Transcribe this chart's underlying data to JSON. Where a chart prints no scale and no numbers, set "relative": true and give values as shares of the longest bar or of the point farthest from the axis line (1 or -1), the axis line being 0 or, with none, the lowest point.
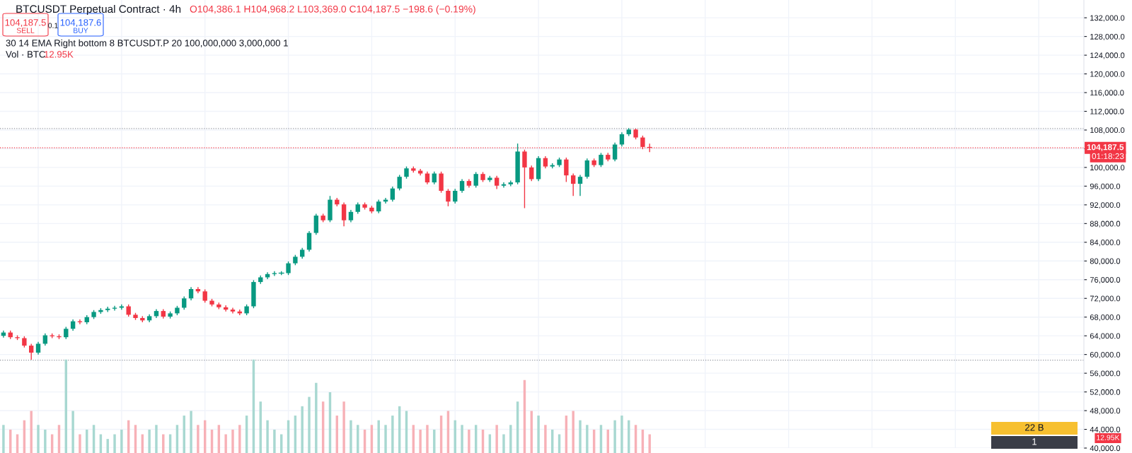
{
  "chart_data": [
    {
      "type": "candlestick",
      "title": "BTCUSDT Perpetual Contract · 4h",
      "categories": [
        null,
        null,
        null,
        null,
        null,
        null,
        null,
        null,
        null,
        null,
        null,
        null,
        null,
        null,
        null,
        null,
        null,
        null,
        null,
        null,
        null,
        null,
        null,
        null,
        null,
        null,
        null,
        null,
        null,
        null,
        null,
        null,
        null,
        null,
        null,
        null,
        null,
        null,
        null,
        null,
        null,
        null,
        null,
        null,
        null,
        null,
        null,
        null,
        null,
        null,
        null,
        null,
        null,
        null,
        null,
        null,
        null,
        null,
        null,
        null,
        null,
        null,
        null,
        null,
        null,
        null,
        null,
        null,
        null,
        null,
        null,
        null,
        null,
        null,
        null,
        null,
        null,
        null,
        null,
        null,
        null,
        null,
        null,
        null,
        null,
        null,
        null,
        null,
        null,
        null,
        null,
        null,
        null,
        null,
        null,
        null,
        null,
        null,
        null,
        null,
        null,
        null,
        null,
        null,
        null,
        null,
        null,
        null,
        null,
        null,
        null,
        null,
        null,
        null,
        null,
        null,
        null,
        null,
        null,
        null,
        null,
        null,
        null,
        null,
        null,
        null,
        null,
        null,
        null,
        null,
        null,
        null,
        null,
        null,
        null,
        null,
        null,
        null,
        null,
        null,
        null,
        null,
        null,
        null,
        null,
        null,
        null,
        null,
        null,
        null,
        null,
        null,
        null,
        null,
        null,
        null
      ],
      "ohlc": [
        [
          64000,
          65000,
          63700,
          64700
        ],
        [
          64700,
          65000,
          63400,
          63700
        ],
        [
          63700,
          64000,
          63200,
          63500
        ],
        [
          63500,
          63800,
          61600,
          61900
        ],
        [
          61900,
          62200,
          59000,
          60400
        ],
        [
          60400,
          62600,
          60100,
          62300
        ],
        [
          62300,
          64400,
          62000,
          64100
        ],
        [
          64100,
          64400,
          63600,
          63900
        ],
        [
          63900,
          64200,
          63400,
          63700
        ],
        [
          63700,
          65800,
          63400,
          65500
        ],
        [
          65500,
          67400,
          65200,
          67100
        ],
        [
          67100,
          67400,
          66600,
          66900
        ],
        [
          66900,
          68300,
          66600,
          68000
        ],
        [
          68000,
          69400,
          67700,
          69100
        ],
        [
          69100,
          69800,
          68800,
          69500
        ],
        [
          69500,
          70100,
          69200,
          69800
        ],
        [
          69800,
          70300,
          69500,
          70000
        ],
        [
          70000,
          70600,
          69700,
          70300
        ],
        [
          70300,
          70600,
          68200,
          68500
        ],
        [
          68500,
          68800,
          67500,
          67800
        ],
        [
          67800,
          68100,
          67000,
          67300
        ],
        [
          67300,
          68500,
          67000,
          68200
        ],
        [
          68200,
          69600,
          67900,
          69300
        ],
        [
          69300,
          69600,
          67800,
          68100
        ],
        [
          68100,
          69100,
          67800,
          68800
        ],
        [
          68800,
          70300,
          68500,
          70000
        ],
        [
          70000,
          72300,
          69700,
          72000
        ],
        [
          72000,
          74300,
          71700,
          74000
        ],
        [
          74000,
          74300,
          73200,
          73500
        ],
        [
          73500,
          73800,
          71200,
          71500
        ],
        [
          71500,
          71800,
          70400,
          70700
        ],
        [
          70700,
          71000,
          69800,
          70100
        ],
        [
          70100,
          70400,
          69300,
          69600
        ],
        [
          69600,
          69900,
          68900,
          69200
        ],
        [
          69200,
          69500,
          68500,
          68800
        ],
        [
          68800,
          70600,
          68500,
          70300
        ],
        [
          70300,
          75800,
          70000,
          75500
        ],
        [
          75500,
          76800,
          75200,
          76500
        ],
        [
          76500,
          77500,
          76200,
          77200
        ],
        [
          77200,
          77700,
          76900,
          77400
        ],
        [
          77400,
          77700,
          77100,
          77400
        ],
        [
          77400,
          79800,
          77100,
          79500
        ],
        [
          79500,
          81200,
          79200,
          80900
        ],
        [
          80900,
          82700,
          80600,
          82400
        ],
        [
          82400,
          86300,
          82100,
          86000
        ],
        [
          86000,
          90000,
          85700,
          89700
        ],
        [
          89700,
          90000,
          88400,
          88700
        ],
        [
          88700,
          93800,
          88400,
          93100
        ],
        [
          93100,
          93400,
          91800,
          92100
        ],
        [
          92100,
          92400,
          87500,
          88700
        ],
        [
          88700,
          90800,
          88400,
          90500
        ],
        [
          90500,
          92400,
          90200,
          92100
        ],
        [
          92100,
          92400,
          91100,
          91400
        ],
        [
          91400,
          91700,
          90300,
          90600
        ],
        [
          90600,
          93000,
          90300,
          92700
        ],
        [
          92700,
          93400,
          92400,
          93100
        ],
        [
          93100,
          95800,
          92800,
          95500
        ],
        [
          95500,
          98300,
          95200,
          98000
        ],
        [
          98000,
          100100,
          97700,
          99800
        ],
        [
          99800,
          100100,
          99000,
          99300
        ],
        [
          99300,
          99600,
          98400,
          98700
        ],
        [
          98700,
          99000,
          96500,
          96800
        ],
        [
          96800,
          99000,
          96500,
          98700
        ],
        [
          98700,
          99000,
          94700,
          95000
        ],
        [
          95000,
          95300,
          91800,
          92700
        ],
        [
          92700,
          95300,
          92400,
          95000
        ],
        [
          95000,
          97400,
          94700,
          97100
        ],
        [
          97100,
          97400,
          95800,
          96100
        ],
        [
          96100,
          98900,
          95800,
          98600
        ],
        [
          98600,
          98900,
          97000,
          97300
        ],
        [
          97300,
          98100,
          97000,
          97800
        ],
        [
          97800,
          98100,
          95500,
          96100
        ],
        [
          96100,
          96700,
          95800,
          96400
        ],
        [
          96400,
          97100,
          96100,
          96800
        ],
        [
          96800,
          105000,
          96500,
          103400
        ],
        [
          103400,
          103700,
          91400,
          100000
        ],
        [
          100000,
          100300,
          97200,
          97500
        ],
        [
          97500,
          102300,
          97200,
          102000
        ],
        [
          102000,
          102300,
          99900,
          100200
        ],
        [
          100200,
          100800,
          99900,
          100500
        ],
        [
          100500,
          102000,
          100200,
          101700
        ],
        [
          101700,
          102000,
          97000,
          98300
        ],
        [
          98300,
          98600,
          94000,
          96500
        ],
        [
          96500,
          98300,
          94000,
          98000
        ],
        [
          98000,
          101800,
          97700,
          101500
        ],
        [
          101500,
          101800,
          100200,
          100500
        ],
        [
          100500,
          103000,
          100200,
          102700
        ],
        [
          102700,
          103000,
          101400,
          101700
        ],
        [
          101700,
          105200,
          101400,
          104900
        ],
        [
          104900,
          107400,
          104600,
          107100
        ],
        [
          107100,
          108300,
          106800,
          108100
        ],
        [
          108100,
          108200,
          106100,
          106400
        ],
        [
          106400,
          106700,
          104000,
          104386.1
        ],
        [
          104386.1,
          104968.2,
          103369.0,
          104187.5
        ],
        null,
        null,
        null,
        null,
        null,
        null,
        null,
        null,
        null,
        null,
        null,
        null,
        null,
        null,
        null,
        null,
        null,
        null,
        null,
        null,
        null,
        null,
        null,
        null,
        null,
        null,
        null,
        null,
        null,
        null,
        null,
        null,
        null,
        null,
        null,
        null,
        null,
        null,
        null,
        null,
        null,
        null,
        null,
        null,
        null,
        null,
        null,
        null,
        null,
        null,
        null,
        null,
        null,
        null,
        null,
        null,
        null,
        null,
        null,
        null,
        null,
        null
      ],
      "colors": [
        "#089981",
        "#f23645",
        "#f23645",
        "#f23645",
        "#f23645",
        "#089981",
        "#089981",
        "#f23645",
        "#f23645",
        "#089981",
        "#089981",
        "#f23645",
        "#089981",
        "#089981",
        "#089981",
        "#089981",
        "#089981",
        "#089981",
        "#f23645",
        "#f23645",
        "#f23645",
        "#089981",
        "#089981",
        "#f23645",
        "#089981",
        "#089981",
        "#089981",
        "#089981",
        "#f23645",
        "#f23645",
        "#f23645",
        "#f23645",
        "#f23645",
        "#f23645",
        "#f23645",
        "#089981",
        "#089981",
        "#089981",
        "#089981",
        "#089981",
        "#089981",
        "#089981",
        "#089981",
        "#089981",
        "#089981",
        "#089981",
        "#f23645",
        "#089981",
        "#f23645",
        "#f23645",
        "#089981",
        "#089981",
        "#f23645",
        "#f23645",
        "#089981",
        "#089981",
        "#089981",
        "#089981",
        "#089981",
        "#f23645",
        "#f23645",
        "#f23645",
        "#089981",
        "#f23645",
        "#f23645",
        "#089981",
        "#089981",
        "#f23645",
        "#089981",
        "#f23645",
        "#089981",
        "#f23645",
        "#089981",
        "#089981",
        "#089981",
        "#f23645",
        "#f23645",
        "#089981",
        "#f23645",
        "#089981",
        "#089981",
        "#f23645",
        "#f23645",
        "#089981",
        "#089981",
        "#f23645",
        "#089981",
        "#f23645",
        "#089981",
        "#089981",
        "#089981",
        "#f23645",
        "#f23645",
        "#f23645",
        null,
        null,
        null,
        null,
        null,
        null,
        null,
        null,
        null,
        null,
        null,
        null,
        null,
        null,
        null,
        null,
        null,
        null,
        null,
        null,
        null,
        null,
        null,
        null,
        null,
        null,
        null,
        null,
        null,
        null,
        null,
        null,
        null,
        null,
        null,
        null,
        null,
        null,
        null,
        null,
        null,
        null,
        null,
        null,
        null,
        null,
        null,
        null,
        null,
        null,
        null,
        null,
        null,
        null,
        null,
        null,
        null,
        null,
        null,
        null,
        null,
        null
      ],
      "ylim": [
        40000,
        135800
      ],
      "yticks": [
        {
          "value": 40000,
          "label": "40,000.0"
        },
        {
          "value": 44000,
          "label": "44,000.0"
        },
        {
          "value": 48000,
          "label": "48,000.0"
        },
        {
          "value": 52000,
          "label": "52,000.0"
        },
        {
          "value": 56000,
          "label": "56,000.0"
        },
        {
          "value": 60000,
          "label": "60,000.0"
        },
        {
          "value": 64000,
          "label": "64,000.0"
        },
        {
          "value": 68000,
          "label": "68,000.0"
        },
        {
          "value": 72000,
          "label": "72,000.0"
        },
        {
          "value": 76000,
          "label": "76,000.0"
        },
        {
          "value": 80000,
          "label": "80,000.0"
        },
        {
          "value": 84000,
          "label": "84,000.0"
        },
        {
          "value": 88000,
          "label": "88,000.0"
        },
        {
          "value": 92000,
          "label": "92,000.0"
        },
        {
          "value": 96000,
          "label": "96,000.0"
        },
        {
          "value": 100000,
          "label": "100,000.0"
        },
        {
          "value": 104000,
          "label": null
        },
        {
          "value": 108000,
          "label": "108,000.0"
        },
        {
          "value": 112000,
          "label": "112,000.0"
        },
        {
          "value": 116000,
          "label": "116,000.0"
        },
        {
          "value": 120000,
          "label": "120,000.0"
        },
        {
          "value": 124000,
          "label": "124,000.0"
        },
        {
          "value": 128000,
          "label": "128,000.0"
        },
        {
          "value": 132000,
          "label": "132,000.0"
        }
      ],
      "tick_labels": "y",
      "grid": true,
      "ref_lines": [
        {
          "axis": "y",
          "value": 108300,
          "color": "#9598a1",
          "line_style": "dotted"
        },
        {
          "axis": "y",
          "value": 104187.5,
          "label": "104,187.5",
          "color": "#f23645",
          "line_style": "dotted"
        },
        {
          "axis": "y",
          "value": 58800,
          "color": "#9598a1",
          "line_style": "dotted"
        }
      ],
      "annotations": [
        "O104,386.1 H104,968.2 L103,369.0 C104,187.5 −198.6 (−0.19%)",
        "104,187.5",
        "SELL",
        "0.1",
        "104,187.6",
        "BUY",
        "30 14 EMA Right bottom 8 BTCUSDT.P 20 100,000,000 3,000,000 1",
        "Vol · BTC",
        "12.95K",
        "01:18:23",
        "22 B",
        "1",
        "12.95K"
      ]
    },
    {
      "type": "bar",
      "relative": true,
      "tick_labels": false,
      "categories": [
        null,
        null,
        null,
        null,
        null,
        null,
        null,
        null,
        null,
        null,
        null,
        null,
        null,
        null,
        null,
        null,
        null,
        null,
        null,
        null,
        null,
        null,
        null,
        null,
        null,
        null,
        null,
        null,
        null,
        null,
        null,
        null,
        null,
        null,
        null,
        null,
        null,
        null,
        null,
        null,
        null,
        null,
        null,
        null,
        null,
        null,
        null,
        null,
        null,
        null,
        null,
        null,
        null,
        null,
        null,
        null,
        null,
        null,
        null,
        null,
        null,
        null,
        null,
        null,
        null,
        null,
        null,
        null,
        null,
        null,
        null,
        null,
        null,
        null,
        null,
        null,
        null,
        null,
        null,
        null,
        null,
        null,
        null,
        null,
        null,
        null,
        null,
        null,
        null,
        null,
        null,
        null,
        null,
        null,
        null,
        null,
        null,
        null,
        null,
        null,
        null,
        null,
        null,
        null,
        null,
        null,
        null,
        null,
        null,
        null,
        null,
        null,
        null,
        null,
        null,
        null,
        null,
        null,
        null,
        null,
        null,
        null,
        null,
        null,
        null,
        null,
        null,
        null,
        null,
        null,
        null,
        null,
        null,
        null,
        null,
        null,
        null,
        null,
        null,
        null,
        null,
        null,
        null,
        null,
        null,
        null,
        null,
        null,
        null,
        null,
        null,
        null,
        null,
        null,
        null,
        null
      ],
      "values": [
        0.3,
        0.25,
        0.2,
        0.35,
        0.45,
        0.3,
        0.25,
        0.2,
        0.3,
        1.0,
        0.45,
        0.2,
        0.25,
        0.3,
        0.2,
        0.15,
        0.2,
        0.25,
        0.35,
        0.3,
        0.2,
        0.25,
        0.3,
        0.2,
        0.2,
        0.3,
        0.4,
        0.45,
        0.3,
        0.35,
        0.25,
        0.3,
        0.2,
        0.25,
        0.3,
        0.4,
        1.0,
        0.55,
        0.35,
        0.25,
        0.2,
        0.35,
        0.4,
        0.5,
        0.6,
        0.75,
        0.55,
        0.65,
        0.4,
        0.55,
        0.35,
        0.3,
        0.25,
        0.3,
        0.35,
        0.3,
        0.4,
        0.5,
        0.45,
        0.3,
        0.25,
        0.3,
        0.25,
        0.4,
        0.45,
        0.35,
        0.3,
        0.25,
        0.3,
        0.25,
        0.2,
        0.3,
        0.2,
        0.3,
        0.55,
        0.78,
        0.45,
        0.4,
        0.3,
        0.25,
        0.2,
        0.4,
        0.45,
        0.35,
        0.3,
        0.25,
        0.3,
        0.25,
        0.35,
        0.4,
        0.35,
        0.3,
        0.25,
        0.2,
        null,
        null,
        null,
        null,
        null,
        null,
        null,
        null,
        null,
        null,
        null,
        null,
        null,
        null,
        null,
        null,
        null,
        null,
        null,
        null,
        null,
        null,
        null,
        null,
        null,
        null,
        null,
        null,
        null,
        null,
        null,
        null,
        null,
        null,
        null,
        null,
        null,
        null,
        null,
        null,
        null,
        null,
        null,
        null,
        null,
        null,
        null,
        null,
        null,
        null,
        null,
        null,
        null,
        null,
        null,
        null,
        null,
        null,
        null,
        null,
        null,
        null
      ],
      "colors": [
        "#a8d8d1",
        "#f7b1b7",
        "#f7b1b7",
        "#f7b1b7",
        "#f7b1b7",
        "#a8d8d1",
        "#a8d8d1",
        "#f7b1b7",
        "#f7b1b7",
        "#a8d8d1",
        "#a8d8d1",
        "#f7b1b7",
        "#a8d8d1",
        "#a8d8d1",
        "#a8d8d1",
        "#a8d8d1",
        "#a8d8d1",
        "#a8d8d1",
        "#f7b1b7",
        "#f7b1b7",
        "#f7b1b7",
        "#a8d8d1",
        "#a8d8d1",
        "#f7b1b7",
        "#a8d8d1",
        "#a8d8d1",
        "#a8d8d1",
        "#a8d8d1",
        "#f7b1b7",
        "#f7b1b7",
        "#f7b1b7",
        "#f7b1b7",
        "#f7b1b7",
        "#f7b1b7",
        "#f7b1b7",
        "#a8d8d1",
        "#a8d8d1",
        "#a8d8d1",
        "#a8d8d1",
        "#a8d8d1",
        "#a8d8d1",
        "#a8d8d1",
        "#a8d8d1",
        "#a8d8d1",
        "#a8d8d1",
        "#a8d8d1",
        "#f7b1b7",
        "#a8d8d1",
        "#f7b1b7",
        "#f7b1b7",
        "#a8d8d1",
        "#a8d8d1",
        "#f7b1b7",
        "#f7b1b7",
        "#a8d8d1",
        "#a8d8d1",
        "#a8d8d1",
        "#a8d8d1",
        "#a8d8d1",
        "#f7b1b7",
        "#f7b1b7",
        "#f7b1b7",
        "#a8d8d1",
        "#f7b1b7",
        "#f7b1b7",
        "#a8d8d1",
        "#a8d8d1",
        "#f7b1b7",
        "#a8d8d1",
        "#f7b1b7",
        "#a8d8d1",
        "#f7b1b7",
        "#a8d8d1",
        "#a8d8d1",
        "#a8d8d1",
        "#f7b1b7",
        "#f7b1b7",
        "#a8d8d1",
        "#f7b1b7",
        "#a8d8d1",
        "#a8d8d1",
        "#f7b1b7",
        "#f7b1b7",
        "#a8d8d1",
        "#a8d8d1",
        "#f7b1b7",
        "#a8d8d1",
        "#f7b1b7",
        "#a8d8d1",
        "#a8d8d1",
        "#a8d8d1",
        "#f7b1b7",
        "#f7b1b7",
        "#f7b1b7",
        null,
        null,
        null,
        null,
        null,
        null,
        null,
        null,
        null,
        null,
        null,
        null,
        null,
        null,
        null,
        null,
        null,
        null,
        null,
        null,
        null,
        null,
        null,
        null,
        null,
        null,
        null,
        null,
        null,
        null,
        null,
        null,
        null,
        null,
        null,
        null,
        null,
        null,
        null,
        null,
        null,
        null,
        null,
        null,
        null,
        null,
        null,
        null,
        null,
        null,
        null,
        null,
        null,
        null,
        null,
        null,
        null,
        null,
        null,
        null,
        null,
        null
      ]
    }
  ]
}
